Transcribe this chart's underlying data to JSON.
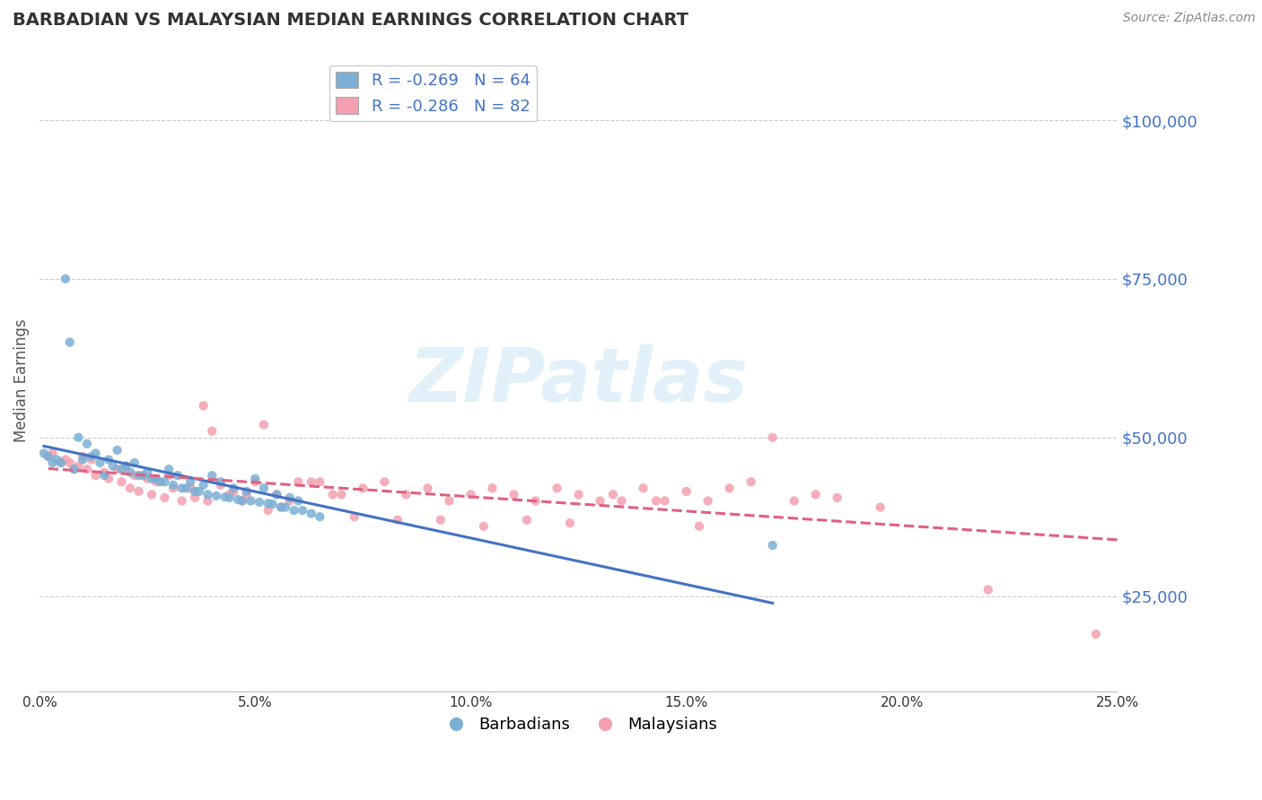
{
  "title": "BARBADIAN VS MALAYSIAN MEDIAN EARNINGS CORRELATION CHART",
  "source_text": "Source: ZipAtlas.com",
  "ylabel": "Median Earnings",
  "xmin": 0.0,
  "xmax": 0.25,
  "ymin": 10000,
  "ymax": 108000,
  "yticks": [
    25000,
    50000,
    75000,
    100000
  ],
  "ytick_labels": [
    "$25,000",
    "$50,000",
    "$75,000",
    "$100,000"
  ],
  "xticks": [
    0.0,
    0.05,
    0.1,
    0.15,
    0.2,
    0.25
  ],
  "xtick_labels": [
    "0.0%",
    "5.0%",
    "10.0%",
    "15.0%",
    "20.0%",
    "25.0%"
  ],
  "barbadian_color": "#7bafd4",
  "malaysian_color": "#f4a0b0",
  "barbadian_line_color": "#4472c4",
  "malaysian_line_color": "#e06080",
  "R_barbadian": -0.269,
  "N_barbadian": 64,
  "R_malaysian": -0.286,
  "N_malaysian": 82,
  "background_color": "#ffffff",
  "grid_color": "#cccccc",
  "title_color": "#333333",
  "axis_label_color": "#555555",
  "ytick_label_color": "#4472c4",
  "xtick_label_color": "#333333",
  "watermark_text": "ZIPatlas",
  "watermark_color": "#d0e8f5",
  "legend_label_barbadian": "Barbadians",
  "legend_label_malaysian": "Malaysians",
  "barbadian_x": [
    0.001,
    0.002,
    0.003,
    0.004,
    0.005,
    0.006,
    0.007,
    0.008,
    0.009,
    0.01,
    0.011,
    0.012,
    0.013,
    0.014,
    0.015,
    0.016,
    0.017,
    0.018,
    0.019,
    0.02,
    0.021,
    0.022,
    0.023,
    0.024,
    0.025,
    0.026,
    0.027,
    0.028,
    0.029,
    0.03,
    0.031,
    0.032,
    0.033,
    0.034,
    0.035,
    0.036,
    0.037,
    0.038,
    0.039,
    0.04,
    0.041,
    0.042,
    0.043,
    0.044,
    0.045,
    0.046,
    0.047,
    0.048,
    0.049,
    0.05,
    0.051,
    0.052,
    0.053,
    0.054,
    0.055,
    0.056,
    0.057,
    0.058,
    0.059,
    0.06,
    0.061,
    0.063,
    0.065,
    0.17
  ],
  "barbadian_y": [
    47500,
    47000,
    46000,
    46500,
    46000,
    75000,
    65000,
    45000,
    50000,
    46500,
    49000,
    47000,
    47500,
    46000,
    44000,
    46500,
    45500,
    48000,
    45000,
    45500,
    44500,
    46000,
    44000,
    44000,
    44500,
    43500,
    43500,
    43000,
    43000,
    45000,
    42500,
    44000,
    42000,
    42000,
    43000,
    41500,
    41500,
    42500,
    41000,
    44000,
    40800,
    43000,
    40600,
    40500,
    42000,
    40200,
    40000,
    41500,
    40000,
    43500,
    39800,
    42000,
    39600,
    39500,
    41000,
    39000,
    39000,
    40500,
    38500,
    40000,
    38500,
    38000,
    37500,
    33000
  ],
  "malaysian_x": [
    0.002,
    0.003,
    0.005,
    0.006,
    0.007,
    0.008,
    0.009,
    0.01,
    0.011,
    0.012,
    0.013,
    0.015,
    0.016,
    0.018,
    0.019,
    0.02,
    0.021,
    0.022,
    0.023,
    0.025,
    0.026,
    0.027,
    0.029,
    0.03,
    0.031,
    0.033,
    0.035,
    0.036,
    0.038,
    0.039,
    0.04,
    0.042,
    0.044,
    0.045,
    0.047,
    0.048,
    0.05,
    0.052,
    0.053,
    0.055,
    0.056,
    0.058,
    0.06,
    0.063,
    0.065,
    0.068,
    0.07,
    0.073,
    0.075,
    0.08,
    0.083,
    0.085,
    0.09,
    0.093,
    0.095,
    0.1,
    0.103,
    0.105,
    0.11,
    0.113,
    0.115,
    0.12,
    0.123,
    0.125,
    0.13,
    0.133,
    0.135,
    0.14,
    0.143,
    0.145,
    0.15,
    0.153,
    0.155,
    0.16,
    0.165,
    0.17,
    0.175,
    0.18,
    0.185,
    0.195,
    0.22,
    0.245
  ],
  "malaysian_y": [
    47000,
    47500,
    46000,
    46500,
    46000,
    45000,
    45500,
    47000,
    45000,
    46500,
    44000,
    44500,
    43500,
    45000,
    43000,
    45500,
    42000,
    44000,
    41500,
    43500,
    41000,
    43000,
    40500,
    44000,
    42000,
    40000,
    42000,
    40500,
    55000,
    40000,
    51000,
    42500,
    41000,
    41500,
    40000,
    41000,
    43000,
    52000,
    38500,
    41000,
    39000,
    40000,
    43000,
    43000,
    43000,
    41000,
    41000,
    37500,
    42000,
    43000,
    37000,
    41000,
    42000,
    37000,
    40000,
    41000,
    36000,
    42000,
    41000,
    37000,
    40000,
    42000,
    36500,
    41000,
    40000,
    41000,
    40000,
    42000,
    40000,
    40000,
    41500,
    36000,
    40000,
    42000,
    43000,
    50000,
    40000,
    41000,
    40500,
    39000,
    26000,
    19000
  ]
}
